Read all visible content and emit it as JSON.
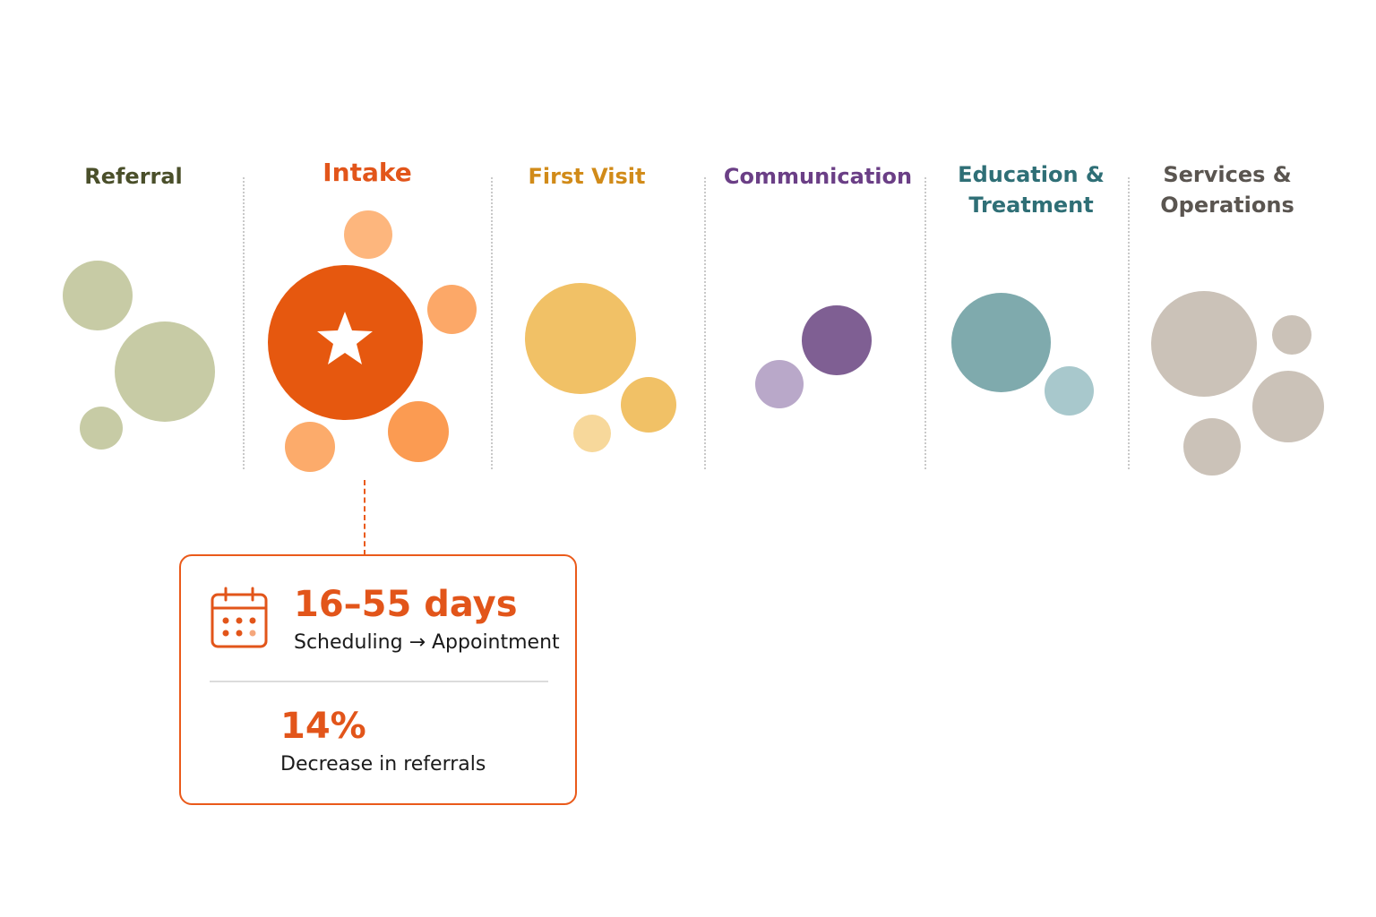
{
  "stages": [
    {
      "id": "referral",
      "label": "Referral",
      "color": "#4a4f2a"
    },
    {
      "id": "intake",
      "label": "Intake",
      "color": "#e2551a",
      "highlighted": true,
      "icon": "star-icon"
    },
    {
      "id": "first_visit",
      "label": "First Visit",
      "color": "#d18b19"
    },
    {
      "id": "communication",
      "label": "Communication",
      "color": "#6b3f86"
    },
    {
      "id": "education",
      "label_line1": "Education &",
      "label_line2": "Treatment",
      "color": "#2f6f76"
    },
    {
      "id": "services",
      "label_line1": "Services &",
      "label_line2": "Operations",
      "color": "#5a5550"
    }
  ],
  "callout": {
    "stage": "intake",
    "icon": "calendar-icon",
    "metric1_value": "16–55 days",
    "metric1_caption": "Scheduling → Appointment",
    "metric2_value": "14%",
    "metric2_caption": "Decrease in referrals"
  },
  "palette": {
    "referral": "#c7cba5",
    "intake_primary": "#e6580f",
    "intake_secondary": "#fdb67d",
    "first_visit": "#f1c166",
    "communication": "#7f5f93",
    "education": "#7faaad",
    "services": "#cbc2b8"
  }
}
